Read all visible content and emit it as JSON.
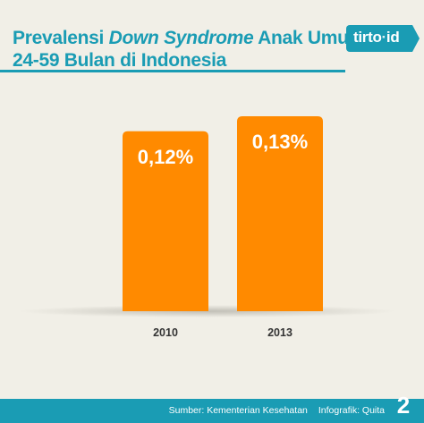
{
  "header": {
    "title_part1": "Prevalensi ",
    "title_italic": "Down Syndrome",
    "title_part2": " Anak Umur",
    "title_line2": "24-59 Bulan di Indonesia",
    "logo_text": "tirto",
    "logo_suffix": "id"
  },
  "chart_data": {
    "type": "bar",
    "categories": [
      "2010",
      "2013"
    ],
    "values": [
      0.12,
      0.13
    ],
    "value_labels": [
      "0,12%",
      "0,13%"
    ],
    "unit": "%",
    "ylim": [
      0,
      0.13
    ],
    "grid": false,
    "colors": {
      "bar": "#ff8a00",
      "label": "#ffffff",
      "category": "#333333"
    }
  },
  "footer": {
    "source": "Sumber: Kementerian Kesehatan",
    "credit": "Infografik: Quita",
    "page": "2"
  },
  "colors": {
    "accent": "#1a9cb4",
    "background": "#f1efe7"
  }
}
